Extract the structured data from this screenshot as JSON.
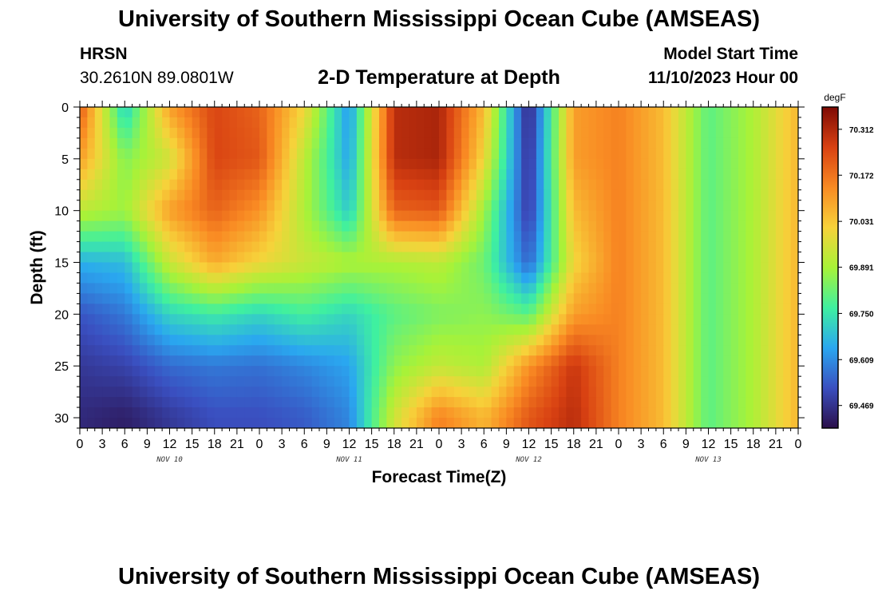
{
  "header": {
    "title": "University of Southern Mississippi Ocean Cube (AMSEAS)",
    "station": "HRSN",
    "coords": "30.2610N  89.0801W",
    "subtitle": "2-D Temperature at Depth",
    "model_start_label": "Model Start Time",
    "model_start_value": "11/10/2023 Hour 00"
  },
  "footer": {
    "title": "University of Southern Mississippi Ocean Cube (AMSEAS)"
  },
  "colors": {
    "colormap": [
      "#2b0f4a",
      "#3a4fc0",
      "#2aa7f0",
      "#3ff0a0",
      "#a8f238",
      "#f7d23a",
      "#f98a23",
      "#d84112",
      "#7e0a04"
    ]
  },
  "chart_data": {
    "type": "heatmap",
    "xlabel": "Forecast Time(Z)",
    "ylabel": "Depth (ft)",
    "xlim": [
      0,
      96
    ],
    "ylim": [
      0,
      31
    ],
    "y_inverted": true,
    "x_tick_labels": [
      "0",
      "3",
      "6",
      "9",
      "12",
      "15",
      "18",
      "21",
      "0",
      "3",
      "6",
      "9",
      "12",
      "15",
      "18",
      "21",
      "0",
      "3",
      "6",
      "9",
      "12",
      "15",
      "18",
      "21",
      "0",
      "3",
      "6",
      "9",
      "12",
      "15",
      "18",
      "21",
      "0"
    ],
    "y_ticks": [
      0,
      5,
      10,
      15,
      20,
      25,
      30
    ],
    "date_labels": [
      {
        "label": "NOV 10",
        "hour": 12
      },
      {
        "label": "NOV 11",
        "hour": 36
      },
      {
        "label": "NOV 12",
        "hour": 60
      },
      {
        "label": "NOV 13",
        "hour": 84
      }
    ],
    "colorbar": {
      "unit": "degF",
      "ticks": [
        "70.312",
        "70.172",
        "70.031",
        "69.891",
        "69.750",
        "69.609",
        "69.469"
      ],
      "range": [
        69.4,
        70.38
      ]
    },
    "depths": [
      0,
      5,
      10,
      15,
      20,
      25,
      30
    ],
    "times": [
      0,
      6,
      12,
      18,
      24,
      30,
      36,
      42,
      48,
      54,
      60,
      66,
      72,
      78,
      84,
      90,
      96
    ],
    "values": [
      [
        70.22,
        69.7,
        70.1,
        70.25,
        70.2,
        70.0,
        69.62,
        70.3,
        70.32,
        70.05,
        69.44,
        70.1,
        70.15,
        70.05,
        69.8,
        69.9,
        70.06
      ],
      [
        70.1,
        69.85,
        69.95,
        70.25,
        70.22,
        69.92,
        69.64,
        70.3,
        70.32,
        70.0,
        69.46,
        70.1,
        70.15,
        70.05,
        69.8,
        69.9,
        70.06
      ],
      [
        69.92,
        69.88,
        70.1,
        70.2,
        70.12,
        69.9,
        69.7,
        70.2,
        70.22,
        69.88,
        69.48,
        70.05,
        70.15,
        70.05,
        69.8,
        69.9,
        70.06
      ],
      [
        69.66,
        69.68,
        69.94,
        70.08,
        70.0,
        69.94,
        69.9,
        69.9,
        69.92,
        69.82,
        69.55,
        70.0,
        70.15,
        70.05,
        69.8,
        69.9,
        70.06
      ],
      [
        69.53,
        69.58,
        69.72,
        69.76,
        69.72,
        69.77,
        69.72,
        69.8,
        69.84,
        69.86,
        69.8,
        70.1,
        70.15,
        70.05,
        69.8,
        69.9,
        70.06
      ],
      [
        69.48,
        69.5,
        69.56,
        69.58,
        69.57,
        69.6,
        69.64,
        69.86,
        69.93,
        69.9,
        70.12,
        70.28,
        70.15,
        70.05,
        69.8,
        69.9,
        70.06
      ],
      [
        69.45,
        69.43,
        69.48,
        69.52,
        69.52,
        69.54,
        69.6,
        69.95,
        70.15,
        70.06,
        70.22,
        70.3,
        70.15,
        70.05,
        69.8,
        69.9,
        70.06
      ]
    ]
  }
}
